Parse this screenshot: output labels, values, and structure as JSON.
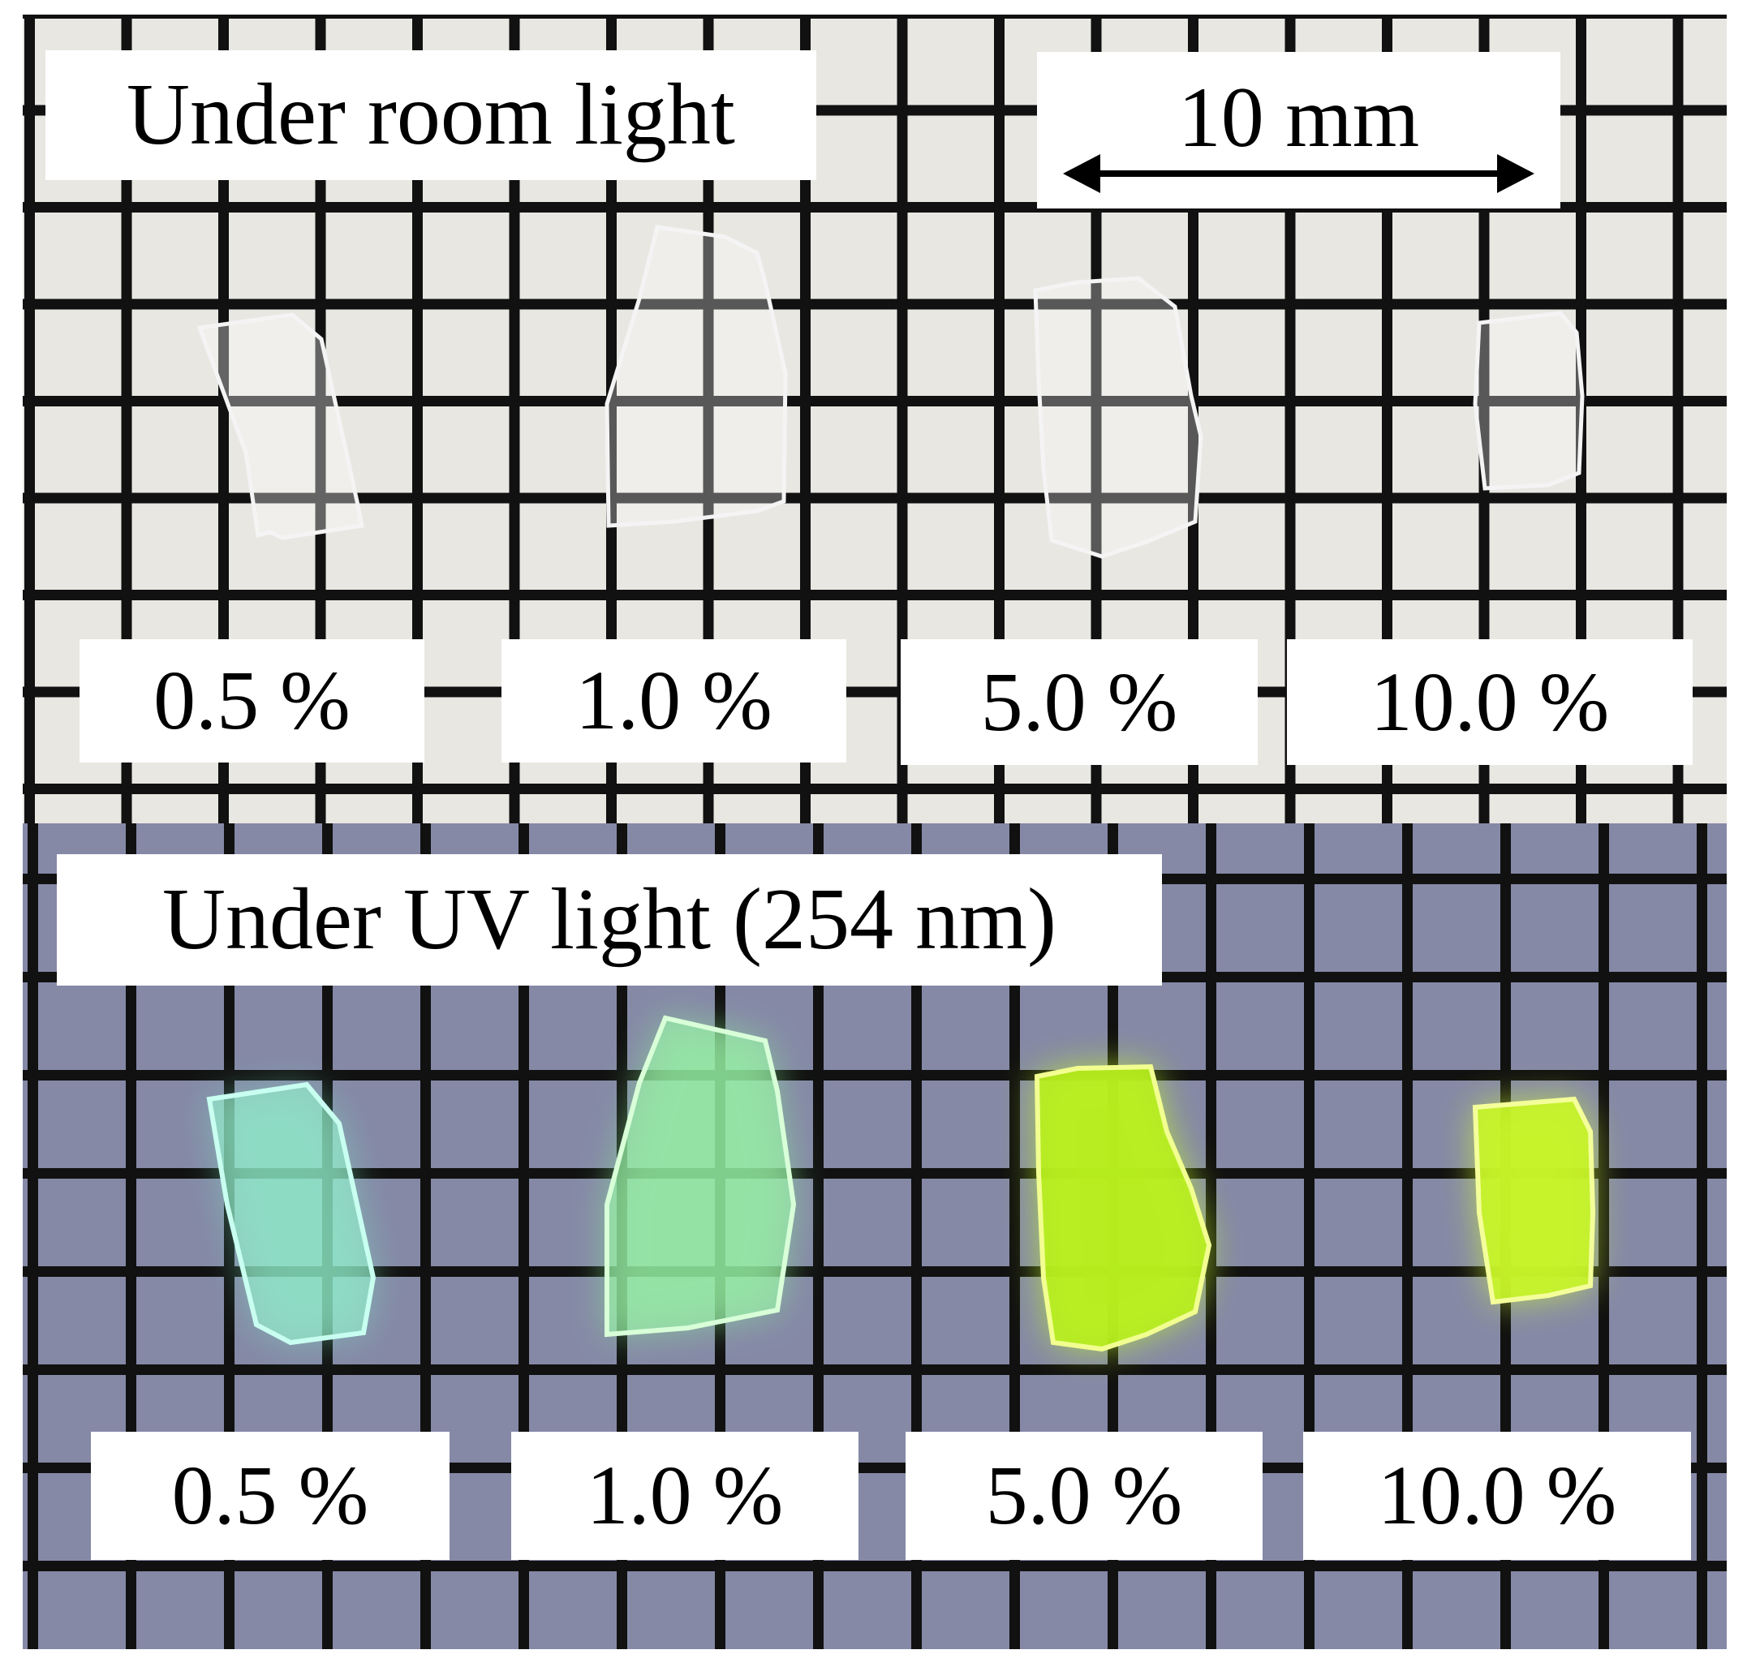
{
  "room_panel": {
    "title": "Under room light",
    "scale_bar": "10 mm",
    "labels": [
      "0.5 %",
      "1.0 %",
      "5.0 %",
      "10.0 %"
    ]
  },
  "uv_panel": {
    "title": "Under UV light (254 nm)",
    "labels": [
      "0.5 %",
      "1.0 %",
      "5.0 %",
      "10.0 %"
    ]
  },
  "colors": {
    "room_paper": "#e9e7e2",
    "uv_paper": "#8589a6",
    "grid": "#111111",
    "glow_0_5": "#7ff0c8",
    "glow_1_0": "#8ff59a",
    "glow_5_0": "#c8ff20",
    "glow_10_0": "#d8ff30"
  }
}
